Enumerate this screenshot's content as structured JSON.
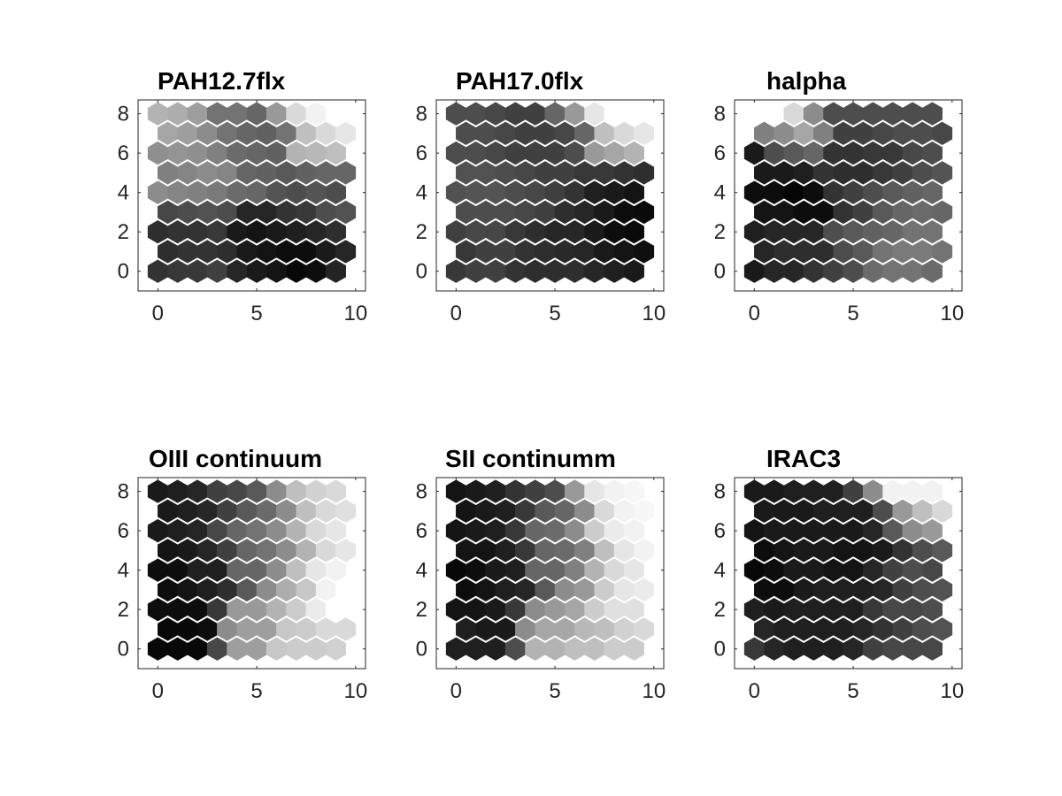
{
  "chart_data": [
    {
      "type": "heatmap",
      "title": "PAH12.7flx",
      "x_ticks": [
        0,
        5,
        10
      ],
      "y_ticks": [
        0,
        2,
        4,
        6,
        8
      ],
      "xlim": [
        -1,
        10.5
      ],
      "ylim": [
        -1,
        8.7
      ],
      "grid": false,
      "colormap": "gray",
      "lattice": "hexagonal 10x9 (odd rows offset by 0.5)",
      "values": [
        [
          0.2,
          0.22,
          0.22,
          0.25,
          0.15,
          0.1,
          0.08,
          0.03,
          0.05,
          0.14
        ],
        [
          0.18,
          0.2,
          0.2,
          0.18,
          0.1,
          0.08,
          0.05,
          0.05,
          0.1,
          0.15
        ],
        [
          0.18,
          0.2,
          0.2,
          0.22,
          0.1,
          0.08,
          0.1,
          0.12,
          0.15,
          0.18
        ],
        [
          0.28,
          0.3,
          0.32,
          0.3,
          0.15,
          0.15,
          0.2,
          0.22,
          0.3,
          0.32
        ],
        [
          0.55,
          0.52,
          0.5,
          0.48,
          0.42,
          0.4,
          0.33,
          0.3,
          0.33,
          0.3
        ],
        [
          0.5,
          0.52,
          0.55,
          0.52,
          0.4,
          0.38,
          0.35,
          0.38,
          0.4,
          0.4
        ],
        [
          0.56,
          0.58,
          0.56,
          0.5,
          0.42,
          0.4,
          0.38,
          0.7,
          0.72,
          0.75
        ],
        [
          0.65,
          0.62,
          0.55,
          0.45,
          0.4,
          0.38,
          0.45,
          0.75,
          0.85,
          0.9
        ],
        [
          0.7,
          0.68,
          0.62,
          0.45,
          0.45,
          0.4,
          0.6,
          0.85,
          0.95,
          1.0
        ]
      ]
    },
    {
      "type": "heatmap",
      "title": "PAH17.0flx",
      "x_ticks": [
        0,
        5,
        10
      ],
      "y_ticks": [
        0,
        2,
        4,
        6,
        8
      ],
      "xlim": [
        -1,
        10.5
      ],
      "ylim": [
        -1,
        8.7
      ],
      "grid": false,
      "colormap": "gray",
      "lattice": "hexagonal 10x9 (odd rows offset by 0.5)",
      "values": [
        [
          0.22,
          0.25,
          0.25,
          0.2,
          0.18,
          0.18,
          0.18,
          0.15,
          0.12,
          0.1
        ],
        [
          0.22,
          0.25,
          0.25,
          0.2,
          0.18,
          0.16,
          0.15,
          0.1,
          0.08,
          0.06
        ],
        [
          0.25,
          0.28,
          0.28,
          0.22,
          0.18,
          0.15,
          0.15,
          0.1,
          0.05,
          0.04
        ],
        [
          0.3,
          0.3,
          0.3,
          0.28,
          0.25,
          0.18,
          0.15,
          0.1,
          0.05,
          0.04
        ],
        [
          0.32,
          0.33,
          0.33,
          0.3,
          0.28,
          0.25,
          0.2,
          0.12,
          0.1,
          0.08
        ],
        [
          0.32,
          0.32,
          0.3,
          0.28,
          0.25,
          0.25,
          0.22,
          0.22,
          0.2,
          0.18
        ],
        [
          0.3,
          0.3,
          0.28,
          0.25,
          0.25,
          0.25,
          0.3,
          0.6,
          0.65,
          0.7
        ],
        [
          0.3,
          0.3,
          0.28,
          0.25,
          0.25,
          0.28,
          0.4,
          0.75,
          0.85,
          0.9
        ],
        [
          0.3,
          0.3,
          0.28,
          0.25,
          0.25,
          0.4,
          0.6,
          0.9,
          1.0,
          1.0
        ]
      ]
    },
    {
      "type": "heatmap",
      "title": "halpha",
      "x_ticks": [
        0,
        5,
        10
      ],
      "y_ticks": [
        0,
        2,
        4,
        6,
        8
      ],
      "xlim": [
        -1,
        10.5
      ],
      "ylim": [
        -1,
        8.7
      ],
      "grid": false,
      "colormap": "gray",
      "lattice": "hexagonal 10x9 (odd rows offset by 0.5)",
      "values": [
        [
          0.1,
          0.15,
          0.15,
          0.2,
          0.25,
          0.3,
          0.42,
          0.45,
          0.45,
          0.42
        ],
        [
          0.15,
          0.18,
          0.18,
          0.18,
          0.3,
          0.35,
          0.45,
          0.48,
          0.48,
          0.45
        ],
        [
          0.12,
          0.15,
          0.15,
          0.15,
          0.3,
          0.35,
          0.38,
          0.4,
          0.45,
          0.45
        ],
        [
          0.08,
          0.08,
          0.05,
          0.05,
          0.2,
          0.25,
          0.35,
          0.4,
          0.42,
          0.4
        ],
        [
          0.05,
          0.05,
          0.02,
          0.05,
          0.2,
          0.25,
          0.3,
          0.35,
          0.38,
          0.4
        ],
        [
          0.1,
          0.1,
          0.12,
          0.2,
          0.18,
          0.18,
          0.22,
          0.25,
          0.3,
          0.33
        ],
        [
          0.1,
          0.3,
          0.35,
          0.4,
          0.2,
          0.2,
          0.22,
          0.22,
          0.28,
          0.3
        ],
        [
          0.5,
          0.55,
          0.65,
          0.5,
          0.25,
          0.25,
          0.28,
          0.3,
          0.3,
          0.28
        ],
        [
          1.0,
          1.0,
          0.85,
          0.55,
          0.3,
          0.3,
          0.3,
          0.3,
          0.3,
          0.3
        ]
      ]
    },
    {
      "type": "heatmap",
      "title": "OIII continuum",
      "x_ticks": [
        0,
        5,
        10
      ],
      "y_ticks": [
        0,
        2,
        4,
        6,
        8
      ],
      "xlim": [
        -1,
        10.5
      ],
      "ylim": [
        -1,
        8.7
      ],
      "grid": false,
      "colormap": "gray",
      "lattice": "hexagonal 10x9 (odd rows offset by 0.5)",
      "values": [
        [
          0.03,
          0.03,
          0.03,
          0.28,
          0.62,
          0.62,
          0.78,
          0.8,
          0.8,
          0.82
        ],
        [
          0.03,
          0.03,
          0.05,
          0.55,
          0.62,
          0.62,
          0.78,
          0.8,
          0.85,
          0.85
        ],
        [
          0.05,
          0.05,
          0.05,
          0.22,
          0.6,
          0.6,
          0.7,
          0.8,
          0.92,
          1.0
        ],
        [
          0.05,
          0.08,
          0.12,
          0.18,
          0.35,
          0.55,
          0.68,
          0.78,
          0.95,
          1.0
        ],
        [
          0.05,
          0.05,
          0.12,
          0.12,
          0.4,
          0.4,
          0.55,
          0.75,
          0.9,
          0.95
        ],
        [
          0.08,
          0.1,
          0.15,
          0.25,
          0.4,
          0.45,
          0.55,
          0.7,
          0.85,
          0.9
        ],
        [
          0.1,
          0.12,
          0.15,
          0.28,
          0.4,
          0.45,
          0.55,
          0.7,
          0.85,
          0.9
        ],
        [
          0.1,
          0.12,
          0.15,
          0.25,
          0.35,
          0.42,
          0.55,
          0.75,
          0.85,
          0.88
        ],
        [
          0.1,
          0.12,
          0.15,
          0.25,
          0.28,
          0.35,
          0.55,
          0.75,
          0.82,
          0.85
        ]
      ]
    },
    {
      "type": "heatmap",
      "title": "SII continumm",
      "x_ticks": [
        0,
        5,
        10
      ],
      "y_ticks": [
        0,
        2,
        4,
        6,
        8
      ],
      "xlim": [
        -1,
        10.5
      ],
      "ylim": [
        -1,
        8.7
      ],
      "grid": false,
      "colormap": "gray",
      "lattice": "hexagonal 10x9 (odd rows offset by 0.5)",
      "values": [
        [
          0.12,
          0.12,
          0.12,
          0.3,
          0.7,
          0.7,
          0.75,
          0.75,
          0.8,
          0.8
        ],
        [
          0.12,
          0.1,
          0.1,
          0.55,
          0.65,
          0.65,
          0.72,
          0.75,
          0.82,
          0.85
        ],
        [
          0.08,
          0.08,
          0.1,
          0.22,
          0.55,
          0.6,
          0.65,
          0.8,
          0.88,
          0.88
        ],
        [
          0.05,
          0.08,
          0.12,
          0.15,
          0.35,
          0.55,
          0.6,
          0.8,
          0.9,
          0.92
        ],
        [
          0.03,
          0.05,
          0.1,
          0.12,
          0.4,
          0.4,
          0.5,
          0.7,
          0.85,
          0.9
        ],
        [
          0.08,
          0.08,
          0.12,
          0.22,
          0.4,
          0.42,
          0.5,
          0.75,
          0.9,
          0.95
        ],
        [
          0.08,
          0.1,
          0.12,
          0.22,
          0.4,
          0.42,
          0.55,
          0.8,
          0.92,
          0.95
        ],
        [
          0.08,
          0.1,
          0.12,
          0.22,
          0.35,
          0.4,
          0.55,
          0.85,
          0.95,
          0.97
        ],
        [
          0.08,
          0.1,
          0.12,
          0.2,
          0.25,
          0.3,
          0.6,
          0.9,
          0.95,
          0.97
        ]
      ]
    },
    {
      "type": "heatmap",
      "title": "IRAC3",
      "x_ticks": [
        0,
        5,
        10
      ],
      "y_ticks": [
        0,
        2,
        4,
        6,
        8
      ],
      "xlim": [
        -1,
        10.5
      ],
      "ylim": [
        -1,
        8.7
      ],
      "grid": false,
      "colormap": "gray",
      "lattice": "hexagonal 10x9 (odd rows offset by 0.5)",
      "values": [
        [
          0.22,
          0.15,
          0.12,
          0.12,
          0.12,
          0.15,
          0.25,
          0.28,
          0.28,
          0.28
        ],
        [
          0.15,
          0.12,
          0.12,
          0.12,
          0.12,
          0.15,
          0.2,
          0.25,
          0.3,
          0.32
        ],
        [
          0.12,
          0.1,
          0.12,
          0.12,
          0.12,
          0.12,
          0.22,
          0.28,
          0.28,
          0.3
        ],
        [
          0.05,
          0.05,
          0.1,
          0.12,
          0.12,
          0.12,
          0.15,
          0.25,
          0.3,
          0.32
        ],
        [
          0.03,
          0.05,
          0.1,
          0.1,
          0.08,
          0.08,
          0.15,
          0.25,
          0.3,
          0.28
        ],
        [
          0.05,
          0.08,
          0.1,
          0.1,
          0.08,
          0.08,
          0.1,
          0.2,
          0.3,
          0.35
        ],
        [
          0.08,
          0.1,
          0.1,
          0.1,
          0.1,
          0.1,
          0.15,
          0.35,
          0.55,
          0.6
        ],
        [
          0.1,
          0.1,
          0.1,
          0.12,
          0.12,
          0.12,
          0.3,
          0.6,
          0.75,
          0.85
        ],
        [
          0.1,
          0.1,
          0.12,
          0.12,
          0.12,
          0.25,
          0.55,
          0.95,
          0.95,
          0.95
        ]
      ]
    }
  ]
}
